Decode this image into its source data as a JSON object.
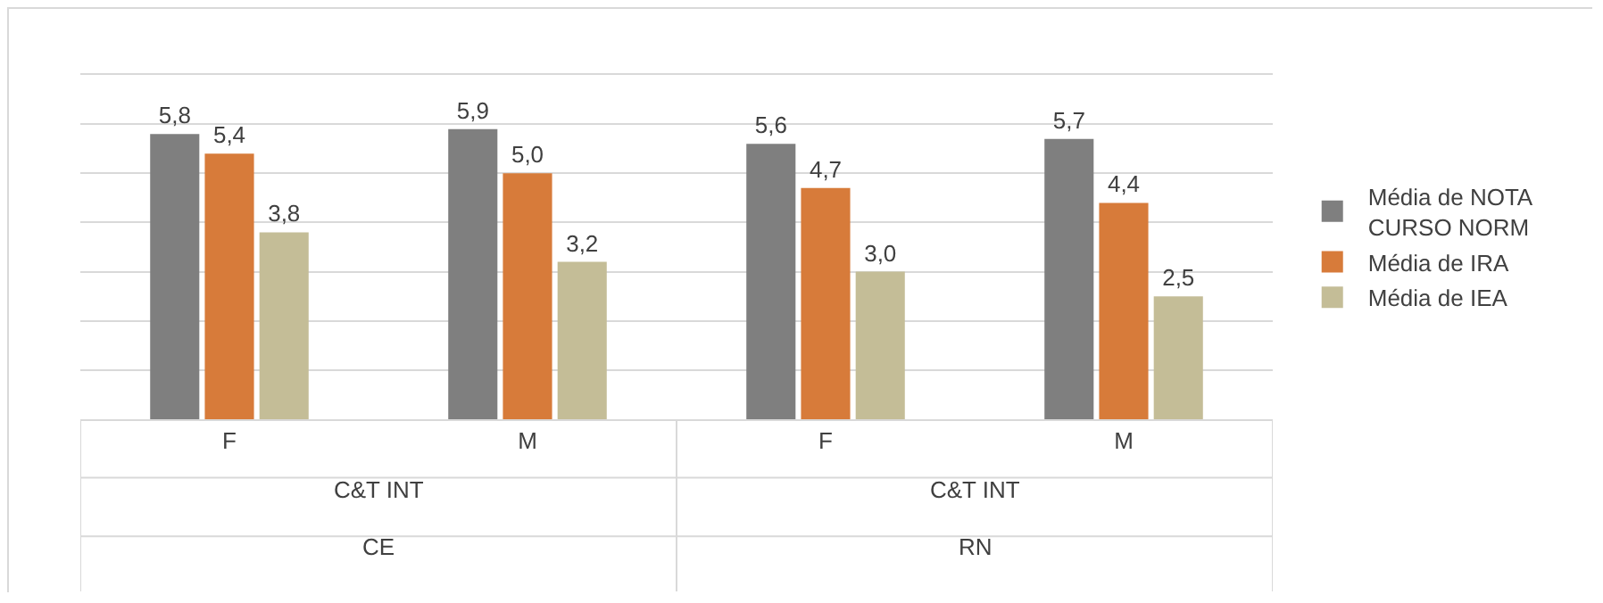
{
  "chart_data": {
    "type": "bar",
    "categories": [
      "F",
      "M",
      "F",
      "M"
    ],
    "annotations": [
      "C&T INT",
      "C&T INT",
      "CE",
      "RN"
    ],
    "series": [
      {
        "name": "Média de NOTA CURSO NORM",
        "color": "#7f7f7f",
        "values": [
          5.8,
          5.9,
          5.6,
          5.7
        ],
        "value_labels": [
          "5,8",
          "5,9",
          "5,6",
          "5,7"
        ]
      },
      {
        "name": "Média de IRA",
        "color": "#d77b3a",
        "values": [
          5.4,
          5.0,
          4.7,
          4.4
        ],
        "value_labels": [
          "5,4",
          "5,0",
          "4,7",
          "4,4"
        ]
      },
      {
        "name": "Média de IEA",
        "color": "#c4bd97",
        "values": [
          3.8,
          3.2,
          3.0,
          2.5
        ],
        "value_labels": [
          "3,8",
          "3,2",
          "3,0",
          "2,5"
        ]
      }
    ],
    "ylim": [
      0,
      7
    ],
    "yticks": [
      {
        "value": 0,
        "label": null
      },
      {
        "value": 1,
        "label": null
      },
      {
        "value": 2,
        "label": null
      },
      {
        "value": 3,
        "label": null
      },
      {
        "value": 4,
        "label": null
      },
      {
        "value": 5,
        "label": null
      },
      {
        "value": 6,
        "label": null
      },
      {
        "value": 7,
        "label": null
      }
    ],
    "grid": "y",
    "legend": "right",
    "tick_labels": "x"
  }
}
